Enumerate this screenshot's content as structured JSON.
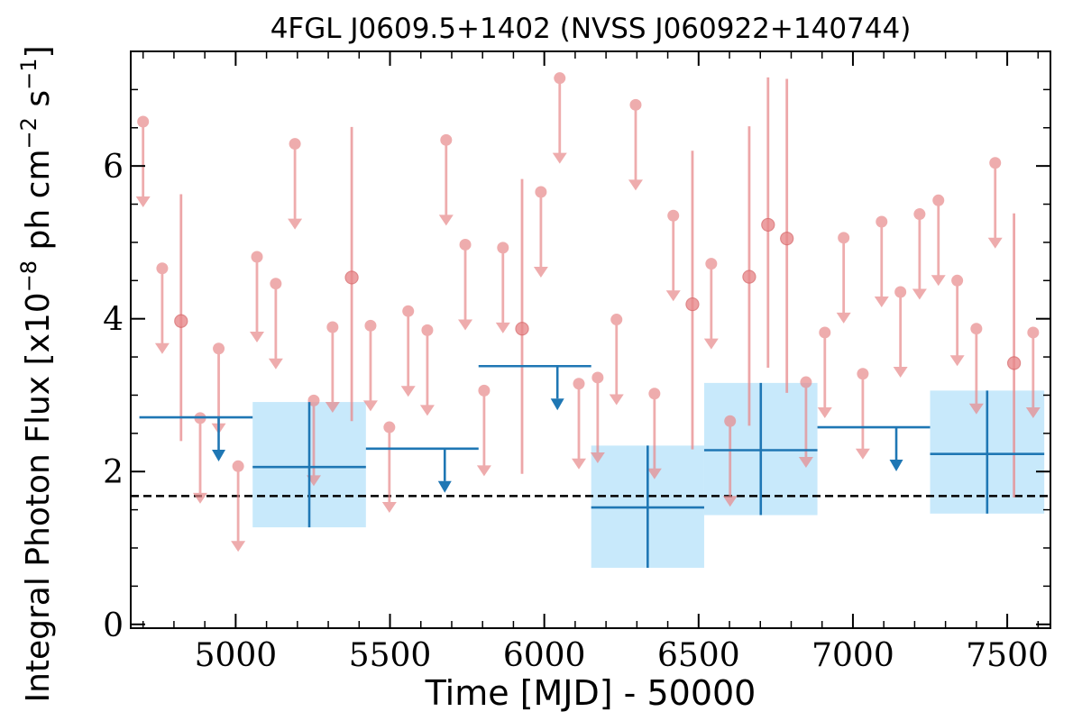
{
  "chart_data": {
    "type": "scatter",
    "title": "4FGL J0609.5+1402 (NVSS J060922+140744)",
    "xlabel": "Time [MJD] - 50000",
    "ylabel": "Integral Photon Flux [x10",
    "ylabel_exp": "−8",
    "ylabel_mid": " ph cm",
    "ylabel_exp2": "−2",
    "ylabel_end": " s",
    "ylabel_exp3": "−1",
    "ylabel_close": "]",
    "xlim": [
      4660,
      7640
    ],
    "ylim": [
      -0.05,
      7.5
    ],
    "xticks": [
      5000,
      5500,
      6000,
      6500,
      7000,
      7500
    ],
    "xtick_labels": [
      "5000",
      "5500",
      "6000",
      "6500",
      "7000",
      "7500"
    ],
    "yticks": [
      0,
      2,
      4,
      6
    ],
    "ytick_labels": [
      "0",
      "2",
      "4",
      "6"
    ],
    "xticks_minor": [
      4700,
      4800,
      4900,
      5100,
      5200,
      5300,
      5400,
      5600,
      5700,
      5800,
      5900,
      6100,
      6200,
      6300,
      6400,
      6600,
      6700,
      6800,
      6900,
      7100,
      7200,
      7300,
      7400,
      7600
    ],
    "yticks_minor": [
      0.5,
      1,
      1.5,
      2.5,
      3,
      3.5,
      4.5,
      5,
      5.5,
      6.5,
      7
    ],
    "baseline": 1.68,
    "colors": {
      "monthly": "#e8898b",
      "yearly": "#1f77b4",
      "yearly_fill": "#c8e9fb",
      "baseline": "#000000"
    },
    "series": [
      {
        "kind": "monthly_upper_limits",
        "points": [
          {
            "x": 4700,
            "y": 6.58
          },
          {
            "x": 4762,
            "y": 4.66
          },
          {
            "x": 4885,
            "y": 2.7
          },
          {
            "x": 4945,
            "y": 3.61
          },
          {
            "x": 5008,
            "y": 2.07
          },
          {
            "x": 5069,
            "y": 4.81
          },
          {
            "x": 5130,
            "y": 4.46
          },
          {
            "x": 5192,
            "y": 6.29
          },
          {
            "x": 5253,
            "y": 2.93
          },
          {
            "x": 5314,
            "y": 3.89
          },
          {
            "x": 5437,
            "y": 3.91
          },
          {
            "x": 5498,
            "y": 2.58
          },
          {
            "x": 5559,
            "y": 4.1
          },
          {
            "x": 5621,
            "y": 3.85
          },
          {
            "x": 5682,
            "y": 6.34
          },
          {
            "x": 5744,
            "y": 4.97
          },
          {
            "x": 5805,
            "y": 3.06
          },
          {
            "x": 5866,
            "y": 4.93
          },
          {
            "x": 5989,
            "y": 5.66
          },
          {
            "x": 6050,
            "y": 7.15
          },
          {
            "x": 6112,
            "y": 3.15
          },
          {
            "x": 6173,
            "y": 3.23
          },
          {
            "x": 6234,
            "y": 3.99
          },
          {
            "x": 6296,
            "y": 6.8
          },
          {
            "x": 6357,
            "y": 3.02
          },
          {
            "x": 6418,
            "y": 5.35
          },
          {
            "x": 6541,
            "y": 4.72
          },
          {
            "x": 6602,
            "y": 2.66
          },
          {
            "x": 6848,
            "y": 3.17
          },
          {
            "x": 6909,
            "y": 3.82
          },
          {
            "x": 6970,
            "y": 5.06
          },
          {
            "x": 7032,
            "y": 3.28
          },
          {
            "x": 7093,
            "y": 5.27
          },
          {
            "x": 7154,
            "y": 4.35
          },
          {
            "x": 7216,
            "y": 5.37
          },
          {
            "x": 7277,
            "y": 5.55
          },
          {
            "x": 7338,
            "y": 4.5
          },
          {
            "x": 7400,
            "y": 3.87
          },
          {
            "x": 7461,
            "y": 6.04
          },
          {
            "x": 7584,
            "y": 3.82
          }
        ]
      },
      {
        "kind": "monthly_detections",
        "points": [
          {
            "x": 4823,
            "y": 3.97,
            "ylow": 2.4,
            "yhigh": 5.63
          },
          {
            "x": 5376,
            "y": 4.54,
            "ylow": 2.66,
            "yhigh": 6.51
          },
          {
            "x": 5928,
            "y": 3.87,
            "ylow": 1.97,
            "yhigh": 5.83
          },
          {
            "x": 6480,
            "y": 4.19,
            "ylow": 2.29,
            "yhigh": 6.2
          },
          {
            "x": 6664,
            "y": 4.55,
            "ylow": 2.6,
            "yhigh": 6.52
          },
          {
            "x": 6725,
            "y": 5.23,
            "ylow": 3.36,
            "yhigh": 7.16
          },
          {
            "x": 6786,
            "y": 5.05,
            "ylow": 3.03,
            "yhigh": 7.14
          },
          {
            "x": 7522,
            "y": 3.42,
            "ylow": 1.66,
            "yhigh": 5.38
          }
        ]
      },
      {
        "kind": "yearly_upper_limits",
        "points": [
          {
            "x0": 4688,
            "x1": 5055,
            "y": 2.71
          },
          {
            "x0": 5422,
            "x1": 5787,
            "y": 2.3
          },
          {
            "x0": 5787,
            "x1": 6152,
            "y": 3.38
          },
          {
            "x0": 6885,
            "x1": 7250,
            "y": 2.58
          }
        ]
      },
      {
        "kind": "yearly_detections",
        "points": [
          {
            "x0": 5055,
            "x1": 5422,
            "y": 2.06,
            "ylow": 1.27,
            "yhigh": 2.91
          },
          {
            "x0": 6152,
            "x1": 6518,
            "y": 1.53,
            "ylow": 0.74,
            "yhigh": 2.34
          },
          {
            "x0": 6518,
            "x1": 6885,
            "y": 2.28,
            "ylow": 1.43,
            "yhigh": 3.16
          },
          {
            "x0": 7250,
            "x1": 7620,
            "y": 2.23,
            "ylow": 1.45,
            "yhigh": 3.06
          }
        ]
      }
    ]
  }
}
